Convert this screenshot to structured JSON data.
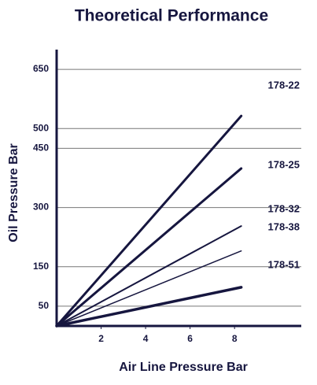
{
  "chart_data": {
    "type": "line",
    "title": "Theoretical Performance",
    "x_label": "Air Line Pressure Bar",
    "y_label": "Oil Pressure Bar",
    "x": [
      0,
      8.3
    ],
    "series": [
      {
        "name": "178-22",
        "color": "#16163f",
        "values": [
          0,
          532
        ]
      },
      {
        "name": "178-25",
        "color": "#16163f",
        "values": [
          0,
          399
        ]
      },
      {
        "name": "178-32",
        "color": "#16163f",
        "values": [
          0,
          253
        ]
      },
      {
        "name": "178-38",
        "color": "#16163f",
        "values": [
          0,
          190
        ]
      },
      {
        "name": "178-51",
        "color": "#16163f",
        "values": [
          0,
          98
        ]
      }
    ],
    "xlim": [
      0,
      11
    ],
    "xticks": [
      2,
      4,
      6,
      8
    ],
    "ylim": [
      0,
      700
    ],
    "yticks": [
      50,
      150,
      300,
      450,
      500,
      650
    ],
    "grid": true
  }
}
